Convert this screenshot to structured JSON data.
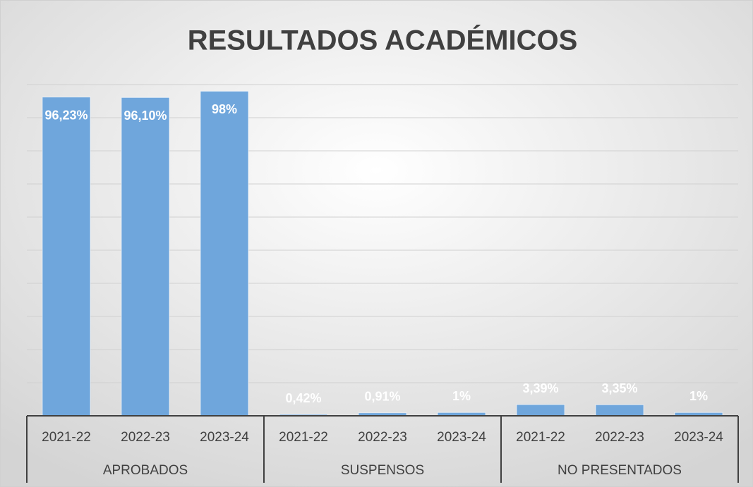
{
  "chart_data": {
    "type": "bar",
    "title": "RESULTADOS ACADÉMICOS",
    "categories": [
      "2021-22",
      "2022-23",
      "2023-24",
      "2021-22",
      "2022-23",
      "2023-24",
      "2021-22",
      "2022-23",
      "2023-24"
    ],
    "groups": [
      "APROBADOS",
      "SUSPENSOS",
      "NO PRESENTADOS"
    ],
    "values": [
      96.23,
      96.1,
      98,
      0.42,
      0.91,
      1,
      3.39,
      3.35,
      1
    ],
    "value_labels": [
      "96,23%",
      "96,10%",
      "98%",
      "0,42%",
      "0,91%",
      "1%",
      "3,39%",
      "3,35%",
      "1%"
    ],
    "color": "#6fa6dc",
    "ylim": [
      0,
      100
    ],
    "yticks": [
      0,
      10,
      20,
      30,
      40,
      50,
      60,
      70,
      80,
      90,
      100
    ],
    "grid": true
  }
}
